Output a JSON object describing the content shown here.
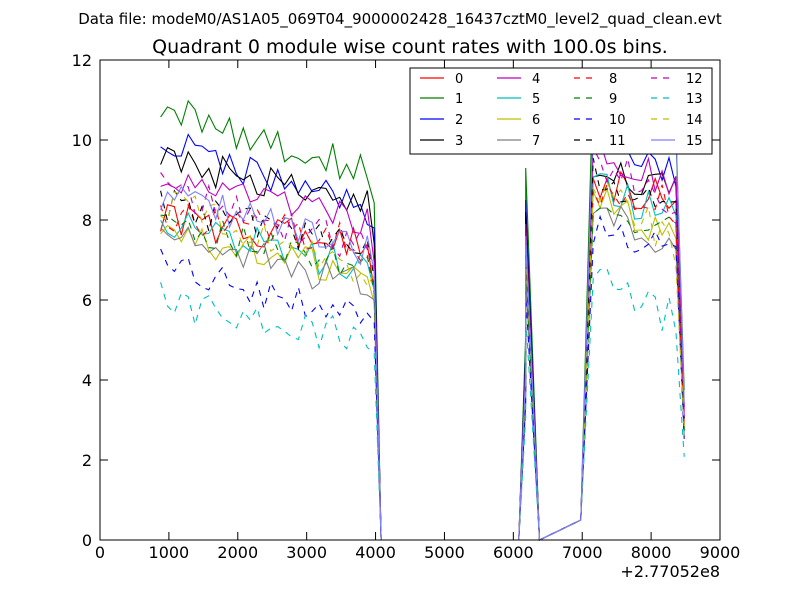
{
  "suptitle": "Data file: modeM0/AS1A05_069T04_9000002428_16437cztM0_level2_quad_clean.evt",
  "chart_data": {
    "type": "line",
    "title": "Quadrant 0 module wise count rates with 100.0s bins.",
    "xlabel": "",
    "ylabel": "",
    "xlim": [
      0,
      9000
    ],
    "ylim": [
      0,
      12
    ],
    "x_offset_label": "+2.77052e8",
    "x_ticks": [
      {
        "value": 0,
        "label": "0"
      },
      {
        "value": 1000,
        "label": "1000"
      },
      {
        "value": 2000,
        "label": "2000"
      },
      {
        "value": 3000,
        "label": "3000"
      },
      {
        "value": 4000,
        "label": "4000"
      },
      {
        "value": 5000,
        "label": "5000"
      },
      {
        "value": 6000,
        "label": "6000"
      },
      {
        "value": 7000,
        "label": "7000"
      },
      {
        "value": 8000,
        "label": "8000"
      },
      {
        "value": 9000,
        "label": "9000"
      }
    ],
    "y_ticks": [
      {
        "value": 0,
        "label": "0"
      },
      {
        "value": 2,
        "label": "2"
      },
      {
        "value": 4,
        "label": "4"
      },
      {
        "value": 6,
        "label": "6"
      },
      {
        "value": 8,
        "label": "8"
      },
      {
        "value": 10,
        "label": "10"
      },
      {
        "value": 12,
        "label": "12"
      }
    ],
    "grid": false,
    "legend": {
      "placement": "top-right",
      "columns": 4
    },
    "bin_width": 100,
    "segments": [
      {
        "x_start": 880,
        "x_end": 4080
      },
      {
        "x_start": 4080,
        "x_end": 6080
      },
      {
        "x_start": 6080,
        "x_end": 6380
      },
      {
        "x_start": 6380,
        "x_end": 6980
      },
      {
        "x_start": 6980,
        "x_end": 8480
      }
    ],
    "series": [
      {
        "name": "0",
        "color": "#ff0000",
        "dashed": false,
        "level1": 8.0,
        "decline1": 0.6,
        "spike": 7.4,
        "level2": 9.0,
        "decline2": 0.5
      },
      {
        "name": "1",
        "color": "#008000",
        "dashed": false,
        "level1": 10.8,
        "decline1": 1.6,
        "spike": 9.3,
        "level2": 11.7,
        "decline2": 1.4
      },
      {
        "name": "2",
        "color": "#0000ff",
        "dashed": false,
        "level1": 10.0,
        "decline1": 1.8,
        "spike": 8.5,
        "level2": 10.4,
        "decline2": 1.2
      },
      {
        "name": "3",
        "color": "#000000",
        "dashed": false,
        "level1": 9.5,
        "decline1": 1.2,
        "spike": 8.2,
        "level2": 9.5,
        "decline2": 0.9
      },
      {
        "name": "4",
        "color": "#bf00bf",
        "dashed": false,
        "level1": 8.9,
        "decline1": 0.9,
        "spike": 7.9,
        "level2": 10.0,
        "decline2": 1.2
      },
      {
        "name": "5",
        "color": "#00bfbf",
        "dashed": false,
        "level1": 8.0,
        "decline1": 1.2,
        "spike": 7.0,
        "level2": 8.8,
        "decline2": 0.8
      },
      {
        "name": "6",
        "color": "#bfbf00",
        "dashed": false,
        "level1": 7.6,
        "decline1": 1.0,
        "spike": 6.8,
        "level2": 8.6,
        "decline2": 1.0
      },
      {
        "name": "7",
        "color": "#808080",
        "dashed": false,
        "level1": 7.7,
        "decline1": 1.4,
        "spike": 6.6,
        "level2": 8.2,
        "decline2": 0.7
      },
      {
        "name": "8",
        "color": "#ff0000",
        "dashed": true,
        "level1": 8.2,
        "decline1": 0.8,
        "spike": 7.2,
        "level2": 8.9,
        "decline2": 0.6
      },
      {
        "name": "9",
        "color": "#008000",
        "dashed": true,
        "level1": 7.9,
        "decline1": 1.2,
        "spike": 6.9,
        "level2": 8.5,
        "decline2": 1.0
      },
      {
        "name": "10",
        "color": "#0000ff",
        "dashed": true,
        "level1": 7.0,
        "decline1": 1.6,
        "spike": 6.2,
        "level2": 7.9,
        "decline2": 0.8
      },
      {
        "name": "11",
        "color": "#000000",
        "dashed": true,
        "level1": 8.4,
        "decline1": 1.0,
        "spike": 7.6,
        "level2": 9.2,
        "decline2": 0.8
      },
      {
        "name": "12",
        "color": "#bf00bf",
        "dashed": true,
        "level1": 8.8,
        "decline1": 1.5,
        "spike": 7.7,
        "level2": 9.6,
        "decline2": 1.3
      },
      {
        "name": "13",
        "color": "#00bfbf",
        "dashed": true,
        "level1": 6.0,
        "decline1": 1.0,
        "spike": 5.6,
        "level2": 6.5,
        "decline2": 1.0
      },
      {
        "name": "14",
        "color": "#bfbf00",
        "dashed": true,
        "level1": 8.5,
        "decline1": 1.8,
        "spike": 7.4,
        "level2": 8.9,
        "decline2": 1.6
      },
      {
        "name": "15",
        "color": "#7f7fff",
        "dashed": false,
        "level1": 8.6,
        "decline1": 1.4,
        "spike": 7.6,
        "level2": 10.8,
        "decline2": 0.8
      }
    ]
  }
}
